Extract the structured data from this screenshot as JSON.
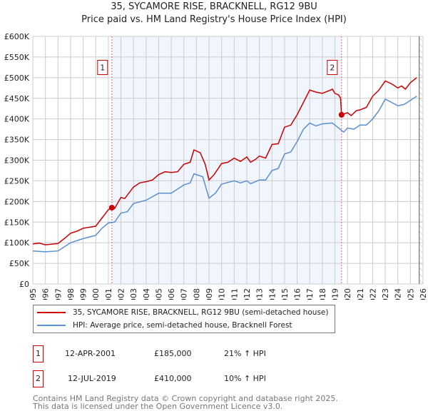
{
  "title": "35, SYCAMORE RISE, BRACKNELL, RG12 9BU",
  "subtitle": "Price paid vs. HM Land Registry's House Price Index (HPI)",
  "chart_data": {
    "type": "line",
    "xlim": [
      1995,
      2026
    ],
    "ylim": [
      0,
      600000
    ],
    "yticks": [
      {
        "v": 0,
        "label": "£0"
      },
      {
        "v": 50000,
        "label": "£50K"
      },
      {
        "v": 100000,
        "label": "£100K"
      },
      {
        "v": 150000,
        "label": "£150K"
      },
      {
        "v": 200000,
        "label": "£200K"
      },
      {
        "v": 250000,
        "label": "£250K"
      },
      {
        "v": 300000,
        "label": "£300K"
      },
      {
        "v": 350000,
        "label": "£350K"
      },
      {
        "v": 400000,
        "label": "£400K"
      },
      {
        "v": 450000,
        "label": "£450K"
      },
      {
        "v": 500000,
        "label": "£500K"
      },
      {
        "v": 550000,
        "label": "£550K"
      },
      {
        "v": 600000,
        "label": "£600K"
      }
    ],
    "xticks": [
      "1995",
      "1996",
      "1997",
      "1998",
      "1999",
      "2000",
      "2001",
      "2002",
      "2003",
      "2004",
      "2005",
      "2006",
      "2007",
      "2008",
      "2009",
      "2010",
      "2011",
      "2012",
      "2013",
      "2014",
      "2015",
      "2016",
      "2017",
      "2018",
      "2019",
      "2020",
      "2021",
      "2022",
      "2023",
      "2024",
      "2025",
      "2026"
    ],
    "shaded_range": [
      2001.28,
      2019.53
    ],
    "forecast_from": 2025.7,
    "series": [
      {
        "name": "35, SYCAMORE RISE, BRACKNELL, RG12 9BU (semi-detached house)",
        "color": "#cc0000",
        "x": [
          1995,
          1995.5,
          1996,
          1997,
          1997.5,
          1998,
          1998.5,
          1999,
          2000,
          2000.5,
          2001,
          2001.28,
          2001.5,
          2002,
          2002.3,
          2003,
          2003.5,
          2004,
          2004.5,
          2005,
          2005.5,
          2006,
          2006.5,
          2007,
          2007.5,
          2007.8,
          2008.3,
          2008.7,
          2009,
          2009.4,
          2010,
          2010.5,
          2011,
          2011.5,
          2012,
          2012.3,
          2012.7,
          2013,
          2013.5,
          2014,
          2014.5,
          2015,
          2015.5,
          2016,
          2016.5,
          2017,
          2017.5,
          2018,
          2018.5,
          2018.8,
          2019,
          2019.3,
          2019.45,
          2019.53,
          2020,
          2020.3,
          2020.7,
          2021,
          2021.5,
          2022,
          2022.5,
          2023,
          2023.5,
          2024,
          2024.3,
          2024.6,
          2025,
          2025.5
        ],
        "y": [
          97000,
          99000,
          95000,
          98000,
          110000,
          123000,
          128000,
          135000,
          140000,
          160000,
          180000,
          185000,
          183000,
          210000,
          207000,
          235000,
          245000,
          248000,
          252000,
          265000,
          272000,
          270000,
          272000,
          290000,
          295000,
          325000,
          318000,
          290000,
          252000,
          265000,
          292000,
          295000,
          305000,
          297000,
          308000,
          295000,
          302000,
          310000,
          305000,
          338000,
          340000,
          380000,
          385000,
          410000,
          440000,
          470000,
          465000,
          462000,
          468000,
          472000,
          462000,
          458000,
          450000,
          410000,
          415000,
          408000,
          420000,
          422000,
          428000,
          455000,
          470000,
          492000,
          485000,
          475000,
          480000,
          472000,
          488000,
          500000
        ]
      },
      {
        "name": "HPI: Average price, semi-detached house, Bracknell Forest",
        "color": "#5b8fd4",
        "x": [
          1995,
          1996,
          1997,
          1998,
          1999,
          2000,
          2000.5,
          2001,
          2001.5,
          2002,
          2002.5,
          2003,
          2004,
          2005,
          2006,
          2007,
          2007.5,
          2007.8,
          2008.5,
          2009,
          2009.5,
          2010,
          2011,
          2011.5,
          2012,
          2012.3,
          2013,
          2013.5,
          2014,
          2014.5,
          2015,
          2015.5,
          2016,
          2016.5,
          2017,
          2017.5,
          2018,
          2018.8,
          2019.3,
          2019.7,
          2020,
          2020.5,
          2021,
          2021.5,
          2022,
          2022.5,
          2023,
          2023.5,
          2024,
          2024.5,
          2025,
          2025.5
        ],
        "y": [
          80000,
          78000,
          80000,
          100000,
          110000,
          118000,
          135000,
          148000,
          150000,
          172000,
          175000,
          195000,
          203000,
          220000,
          220000,
          240000,
          245000,
          267000,
          260000,
          208000,
          220000,
          242000,
          250000,
          245000,
          250000,
          243000,
          252000,
          252000,
          275000,
          280000,
          315000,
          320000,
          345000,
          375000,
          390000,
          383000,
          388000,
          390000,
          378000,
          368000,
          378000,
          375000,
          385000,
          385000,
          400000,
          420000,
          448000,
          440000,
          432000,
          435000,
          445000,
          455000
        ]
      }
    ],
    "sales": [
      {
        "id": "1",
        "x": 2001.28,
        "y": 185000
      },
      {
        "id": "2",
        "x": 2019.53,
        "y": 410000
      }
    ]
  },
  "legend": {
    "property": "35, SYCAMORE RISE, BRACKNELL, RG12 9BU (semi-detached house)",
    "hpi": "HPI: Average price, semi-detached house, Bracknell Forest"
  },
  "transactions": [
    {
      "num": "1",
      "date": "12-APR-2001",
      "price": "£185,000",
      "hpi": "21% ↑ HPI"
    },
    {
      "num": "2",
      "date": "12-JUL-2019",
      "price": "£410,000",
      "hpi": "10% ↑ HPI"
    }
  ],
  "footer": [
    "Contains HM Land Registry data © Crown copyright and database right 2025.",
    "This data is licensed under the Open Government Licence v3.0."
  ]
}
